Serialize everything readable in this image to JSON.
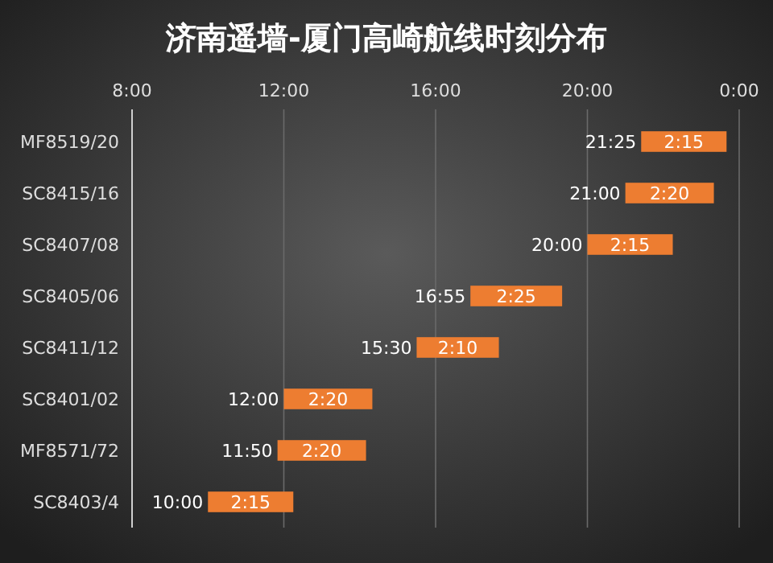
{
  "chart_data": {
    "type": "bar",
    "orientation": "horizontal",
    "title": "济南遥墙-厦门高崎航线时刻分布",
    "categories": [
      "MF8519/20",
      "SC8415/16",
      "SC8407/08",
      "SC8405/06",
      "SC8411/12",
      "SC8401/02",
      "MF8571/72",
      "SC8403/4"
    ],
    "base": [
      21.417,
      21,
      20,
      16.917,
      15.5,
      12,
      11.833,
      10
    ],
    "values": [
      2.25,
      2.333,
      2.25,
      2.417,
      2.167,
      2.333,
      2.333,
      2.25
    ],
    "value_labels": [
      "2:15",
      "2:20",
      "2:15",
      "2:25",
      "2:10",
      "2:20",
      "2:20",
      "2:15"
    ],
    "color": "#ed7d31",
    "xlim": [
      8,
      24
    ],
    "xticks": [
      {
        "value": 8,
        "label": "8:00"
      },
      {
        "value": 12,
        "label": "12:00"
      },
      {
        "value": 16,
        "label": "16:00"
      },
      {
        "value": 20,
        "label": "20:00"
      },
      {
        "value": 24,
        "label": "0:00"
      }
    ],
    "grid": "x",
    "annotations": [
      {
        "text": "21:25",
        "x": 21.417,
        "y": "MF8519/20"
      },
      {
        "text": "21:00",
        "x": 21,
        "y": "SC8415/16"
      },
      {
        "text": "20:00",
        "x": 20,
        "y": "SC8407/08"
      },
      {
        "text": "16:55",
        "x": 16.917,
        "y": "SC8405/06"
      },
      {
        "text": "15:30",
        "x": 15.5,
        "y": "SC8411/12"
      },
      {
        "text": "12:00",
        "x": 12,
        "y": "SC8401/02"
      },
      {
        "text": "11:50",
        "x": 11.833,
        "y": "MF8571/72"
      },
      {
        "text": "10:00",
        "x": 10,
        "y": "SC8403/4"
      }
    ]
  }
}
